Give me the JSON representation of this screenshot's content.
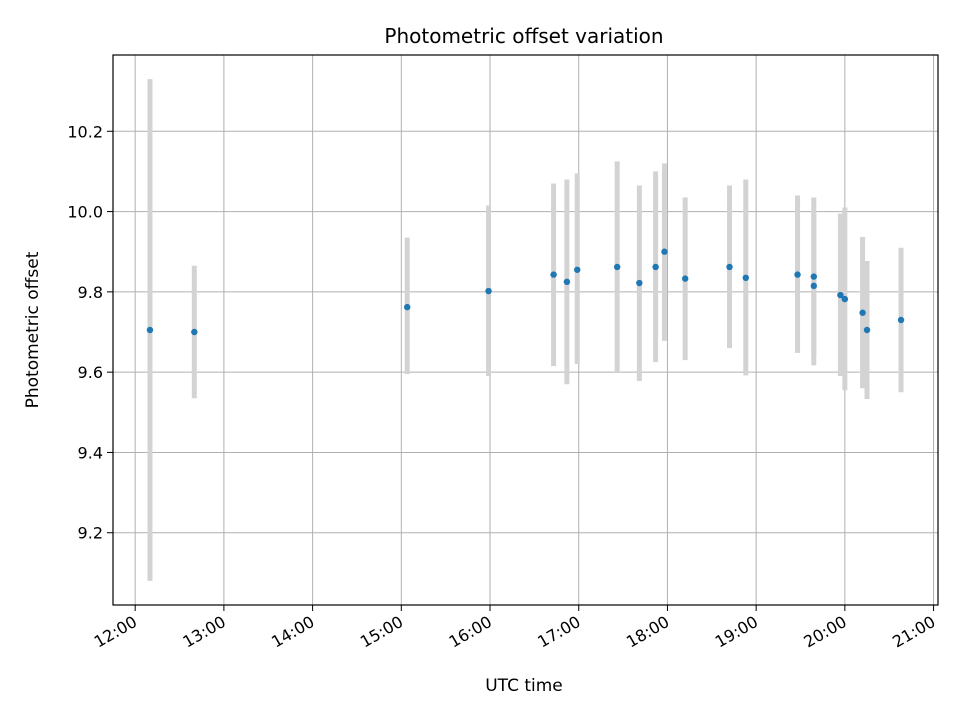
{
  "chart_data": {
    "type": "scatter",
    "title": "Photometric offset variation",
    "xlabel": "UTC time",
    "ylabel": "Photometric offset",
    "xlim": [
      "11:45",
      "21:03"
    ],
    "ylim": [
      9.02,
      10.39
    ],
    "x_ticks": [
      "12:00",
      "13:00",
      "14:00",
      "15:00",
      "16:00",
      "17:00",
      "18:00",
      "19:00",
      "20:00",
      "21:00"
    ],
    "y_ticks": [
      9.2,
      9.4,
      9.6,
      9.8,
      10.0,
      10.2
    ],
    "grid": true,
    "point_color": "#1f77b4",
    "errorbar_color": "#d3d3d3",
    "points": [
      {
        "t": "12:10",
        "y": 9.705,
        "ymin": 9.08,
        "ymax": 10.33
      },
      {
        "t": "12:40",
        "y": 9.7,
        "ymin": 9.535,
        "ymax": 9.865
      },
      {
        "t": "15:04",
        "y": 9.762,
        "ymin": 9.595,
        "ymax": 9.935
      },
      {
        "t": "15:59",
        "y": 9.802,
        "ymin": 9.59,
        "ymax": 10.015
      },
      {
        "t": "16:43",
        "y": 9.843,
        "ymin": 9.615,
        "ymax": 10.07
      },
      {
        "t": "16:52",
        "y": 9.825,
        "ymin": 9.57,
        "ymax": 10.08
      },
      {
        "t": "16:59",
        "y": 9.855,
        "ymin": 9.62,
        "ymax": 10.095
      },
      {
        "t": "17:26",
        "y": 9.862,
        "ymin": 9.6,
        "ymax": 10.125
      },
      {
        "t": "17:41",
        "y": 9.822,
        "ymin": 9.578,
        "ymax": 10.065
      },
      {
        "t": "17:52",
        "y": 9.862,
        "ymin": 9.625,
        "ymax": 10.1
      },
      {
        "t": "17:58",
        "y": 9.9,
        "ymin": 9.678,
        "ymax": 10.12
      },
      {
        "t": "18:12",
        "y": 9.833,
        "ymin": 9.63,
        "ymax": 10.035
      },
      {
        "t": "18:42",
        "y": 9.862,
        "ymin": 9.66,
        "ymax": 10.065
      },
      {
        "t": "18:53",
        "y": 9.835,
        "ymin": 9.592,
        "ymax": 10.08
      },
      {
        "t": "19:28",
        "y": 9.843,
        "ymin": 9.648,
        "ymax": 10.04
      },
      {
        "t": "19:39",
        "y": 9.838,
        "ymin": 9.64,
        "ymax": 10.035
      },
      {
        "t": "19:39",
        "y": 9.815,
        "ymin": 9.617,
        "ymax": 10.0
      },
      {
        "t": "19:57",
        "y": 9.792,
        "ymin": 9.59,
        "ymax": 9.995
      },
      {
        "t": "20:00",
        "y": 9.782,
        "ymin": 9.555,
        "ymax": 10.01
      },
      {
        "t": "20:12",
        "y": 9.748,
        "ymin": 9.56,
        "ymax": 9.937
      },
      {
        "t": "20:15",
        "y": 9.705,
        "ymin": 9.533,
        "ymax": 9.877
      },
      {
        "t": "20:38",
        "y": 9.73,
        "ymin": 9.55,
        "ymax": 9.91
      }
    ]
  }
}
